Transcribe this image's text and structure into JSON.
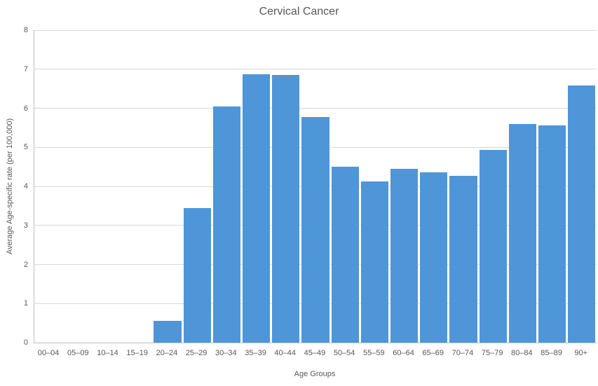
{
  "chart_data": {
    "type": "bar",
    "title": "Cervical Cancer",
    "xlabel": "Age Groups",
    "ylabel": "Average Age-specific rate (per 100,000)",
    "categories": [
      "00–04",
      "05–09",
      "10–14",
      "15–19",
      "20–24",
      "25–29",
      "30–34",
      "35–39",
      "40–44",
      "45–49",
      "50–54",
      "55–59",
      "60–64",
      "65–69",
      "70–74",
      "75–79",
      "80–84",
      "85–89",
      "90+"
    ],
    "values": [
      0,
      0,
      0,
      0,
      0.55,
      3.45,
      6.05,
      6.87,
      6.85,
      5.77,
      4.51,
      4.13,
      4.45,
      4.36,
      4.27,
      4.93,
      5.6,
      5.56,
      6.58
    ],
    "ylim": [
      0,
      8
    ],
    "ytick_interval": 1,
    "yticks": [
      0,
      1,
      2,
      3,
      4,
      5,
      6,
      7,
      8
    ],
    "grid": true,
    "legend": false,
    "colors": {
      "bar": "#4f96d8",
      "gridline": "#d9d9d9",
      "axis_line": "#bfbfbf",
      "text": "#595959",
      "title": "#595959",
      "background": "#ffffff"
    }
  }
}
